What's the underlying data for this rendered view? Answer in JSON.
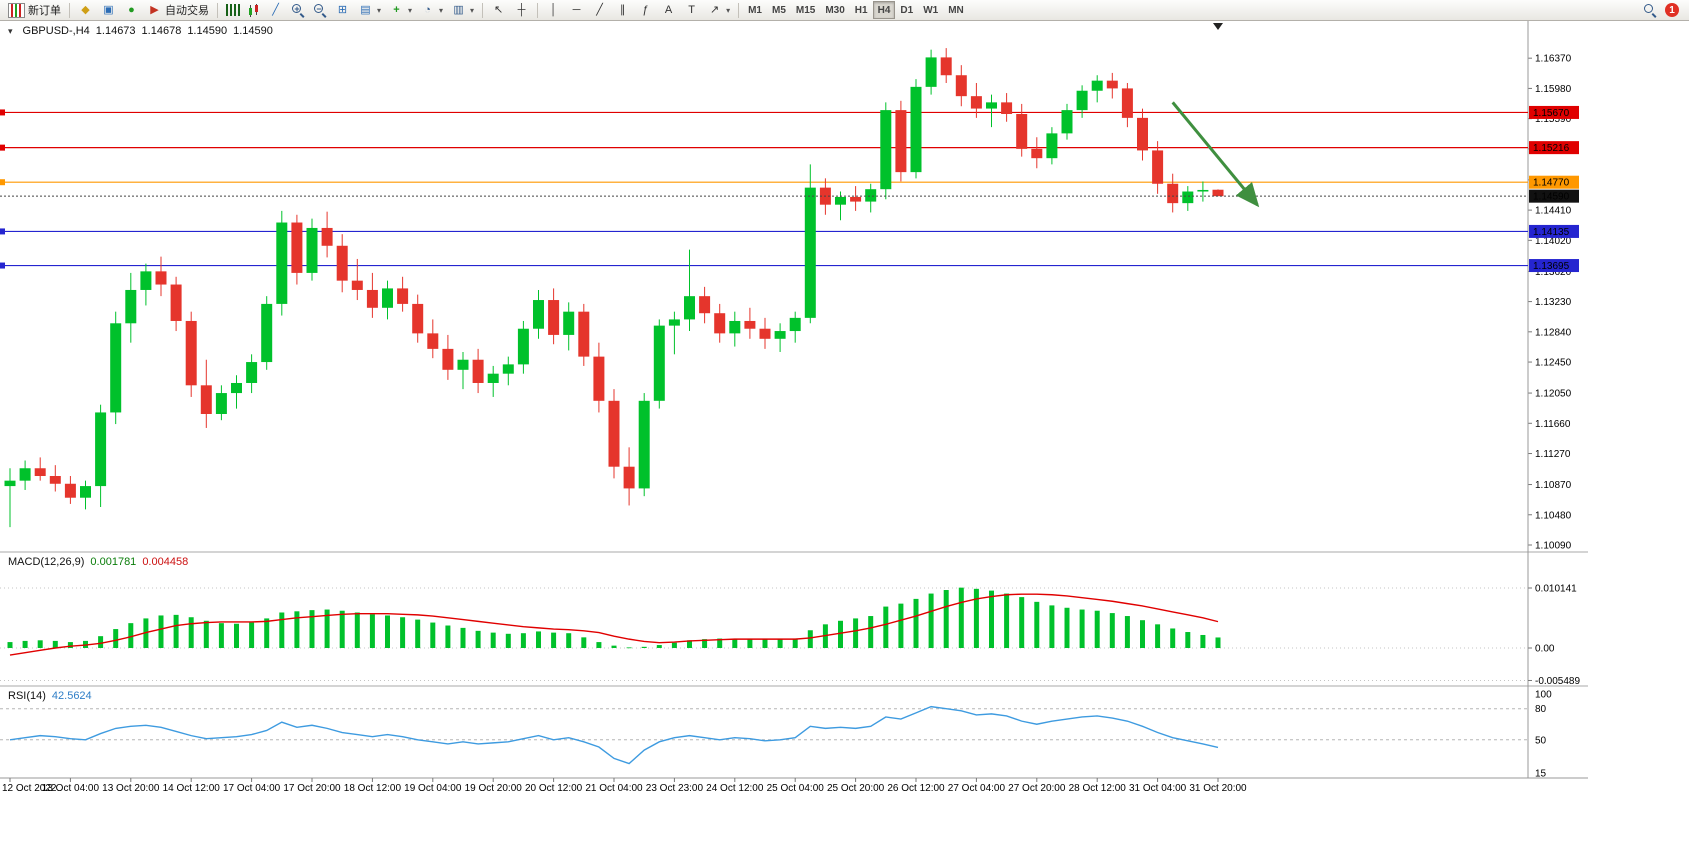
{
  "toolbar": {
    "new_order_label": "新订单",
    "autotrading_label": "自动交易",
    "timeframes": [
      "M1",
      "M5",
      "M15",
      "M30",
      "H1",
      "H4",
      "D1",
      "W1",
      "MN"
    ],
    "active_timeframe": "H4",
    "notification_count": "1"
  },
  "icons": {
    "caret": "▾",
    "market_watch": "◆",
    "data_window": "▣",
    "navigator": "●",
    "autotrading": "▶",
    "line_chart": "╱",
    "tile_windows": "⊞",
    "arrange": "▤",
    "indicators": "+",
    "periods": "◔",
    "templates": "▥",
    "cursor": "↖",
    "crosshair": "┼",
    "vline": "│",
    "hline": "─",
    "trendline": "╱",
    "channel": "∥",
    "fibonacci": "ƒ",
    "text_tool": "A",
    "label_tool": "T",
    "arrows_tool": "↗",
    "zoom_in_sign": "+",
    "zoom_out_sign": "−",
    "one_click": "▾"
  },
  "chart_header": {
    "symbol": "GBPUSD-,H4",
    "open": "1.14673",
    "high": "1.14678",
    "low": "1.14590",
    "close": "1.14590"
  },
  "indicators": {
    "macd": {
      "label": "MACD(12,26,9)",
      "value1": "0.001781",
      "value2": "0.004458",
      "scale": [
        "0.010141",
        "0.00",
        "-0.005489"
      ]
    },
    "rsi": {
      "label": "RSI(14)",
      "value": "42.5624",
      "scale": [
        "100",
        "80",
        "50",
        "15"
      ],
      "levels": [
        80,
        50
      ]
    }
  },
  "colors": {
    "up": "#00C12B",
    "down": "#E5352C",
    "macd_hist": "#00C12B",
    "macd_signal": "#E00000",
    "rsi_line": "#3E9BE0",
    "grid": "#b9b9b9",
    "red_line": "#E00000",
    "orange_line": "#FF9800",
    "blue_line": "#2525D0",
    "current_line": "#444444",
    "current_label_bg": "#111111",
    "arrow": "#3F8F3F"
  },
  "chart_data": {
    "type": "candlestick",
    "title": "GBPUSD-,H4",
    "timeframe": "H4",
    "ylim": [
      1.1009,
      1.1695
    ],
    "grid": "off",
    "x_label_every": 4,
    "x_labels": [
      "12 Oct 2022",
      "13 Oct 04:00",
      "13 Oct 20:00",
      "14 Oct 12:00",
      "17 Oct 04:00",
      "17 Oct 20:00",
      "18 Oct 12:00",
      "19 Oct 04:00",
      "19 Oct 20:00",
      "20 Oct 12:00",
      "21 Oct 04:00",
      "23 Oct 23:00",
      "24 Oct 12:00",
      "25 Oct 04:00",
      "25 Oct 20:00",
      "26 Oct 12:00",
      "27 Oct 04:00",
      "27 Oct 20:00",
      "28 Oct 12:00",
      "31 Oct 04:00",
      "31 Oct 20:00"
    ],
    "y_ticks": [
      "1.16370",
      "1.15980",
      "1.15590",
      "1.15200",
      "1.14800",
      "1.14410",
      "1.14020",
      "1.13620",
      "1.13230",
      "1.12840",
      "1.12450",
      "1.12050",
      "1.11660",
      "1.11270",
      "1.10870",
      "1.10480",
      "1.10090"
    ],
    "current_price": {
      "price": 1.1459,
      "label": "1.14590"
    },
    "hlines": [
      {
        "price": 1.1567,
        "label": "1.15670",
        "color": "#E00000"
      },
      {
        "price": 1.15216,
        "label": "1.15216",
        "color": "#E00000"
      },
      {
        "price": 1.1477,
        "label": "1.14770",
        "color": "#FF9800"
      },
      {
        "price": 1.14135,
        "label": "1.14135",
        "color": "#2525D0"
      },
      {
        "price": 1.13695,
        "label": "1.13695",
        "color": "#2525D0"
      }
    ],
    "arrow_annotation": {
      "from_bar": 77,
      "from_price": 1.158,
      "to_bar": 83,
      "to_price": 1.144
    },
    "candles": [
      [
        1.1085,
        1.1108,
        1.1032,
        1.1092
      ],
      [
        1.1092,
        1.1118,
        1.108,
        1.1108
      ],
      [
        1.1108,
        1.1122,
        1.1092,
        1.1098
      ],
      [
        1.1098,
        1.1112,
        1.1078,
        1.1088
      ],
      [
        1.1088,
        1.1098,
        1.1062,
        1.107
      ],
      [
        1.107,
        1.1092,
        1.1055,
        1.1085
      ],
      [
        1.1085,
        1.119,
        1.1058,
        1.118
      ],
      [
        1.118,
        1.131,
        1.1165,
        1.1295
      ],
      [
        1.1295,
        1.136,
        1.127,
        1.1338
      ],
      [
        1.1338,
        1.1372,
        1.1318,
        1.1362
      ],
      [
        1.1362,
        1.1381,
        1.133,
        1.1345
      ],
      [
        1.1345,
        1.1355,
        1.1285,
        1.1298
      ],
      [
        1.1298,
        1.131,
        1.12,
        1.1215
      ],
      [
        1.1215,
        1.1248,
        1.116,
        1.1178
      ],
      [
        1.1178,
        1.1215,
        1.117,
        1.1205
      ],
      [
        1.1205,
        1.1228,
        1.1185,
        1.1218
      ],
      [
        1.1218,
        1.1255,
        1.1205,
        1.1245
      ],
      [
        1.1245,
        1.133,
        1.1235,
        1.132
      ],
      [
        1.132,
        1.144,
        1.1305,
        1.1425
      ],
      [
        1.1425,
        1.1435,
        1.1345,
        1.136
      ],
      [
        1.136,
        1.143,
        1.135,
        1.1418
      ],
      [
        1.1418,
        1.1439,
        1.138,
        1.1395
      ],
      [
        1.1395,
        1.141,
        1.1335,
        1.135
      ],
      [
        1.135,
        1.1378,
        1.1325,
        1.1338
      ],
      [
        1.1338,
        1.136,
        1.1302,
        1.1315
      ],
      [
        1.1315,
        1.135,
        1.13,
        1.134
      ],
      [
        1.134,
        1.1355,
        1.131,
        1.132
      ],
      [
        1.132,
        1.1332,
        1.127,
        1.1282
      ],
      [
        1.1282,
        1.13,
        1.125,
        1.1262
      ],
      [
        1.1262,
        1.128,
        1.1222,
        1.1235
      ],
      [
        1.1235,
        1.1258,
        1.121,
        1.1248
      ],
      [
        1.1248,
        1.1262,
        1.1205,
        1.1218
      ],
      [
        1.1218,
        1.124,
        1.12,
        1.123
      ],
      [
        1.123,
        1.1252,
        1.1215,
        1.1242
      ],
      [
        1.1242,
        1.1298,
        1.123,
        1.1288
      ],
      [
        1.1288,
        1.1338,
        1.1275,
        1.1325
      ],
      [
        1.1325,
        1.134,
        1.1268,
        1.128
      ],
      [
        1.128,
        1.1322,
        1.126,
        1.131
      ],
      [
        1.131,
        1.132,
        1.124,
        1.1252
      ],
      [
        1.1252,
        1.127,
        1.118,
        1.1195
      ],
      [
        1.1195,
        1.121,
        1.1095,
        1.111
      ],
      [
        1.111,
        1.1135,
        1.106,
        1.1082
      ],
      [
        1.1082,
        1.1205,
        1.1072,
        1.1195
      ],
      [
        1.1195,
        1.13,
        1.1185,
        1.1292
      ],
      [
        1.1292,
        1.131,
        1.1255,
        1.13
      ],
      [
        1.13,
        1.139,
        1.1285,
        1.133
      ],
      [
        1.133,
        1.1342,
        1.1295,
        1.1308
      ],
      [
        1.1308,
        1.132,
        1.127,
        1.1282
      ],
      [
        1.1282,
        1.131,
        1.1265,
        1.1298
      ],
      [
        1.1298,
        1.1315,
        1.1275,
        1.1288
      ],
      [
        1.1288,
        1.1302,
        1.1262,
        1.1275
      ],
      [
        1.1275,
        1.1295,
        1.1258,
        1.1285
      ],
      [
        1.1285,
        1.131,
        1.127,
        1.1302
      ],
      [
        1.1302,
        1.15,
        1.1295,
        1.147
      ],
      [
        1.147,
        1.1482,
        1.1435,
        1.1448
      ],
      [
        1.1448,
        1.1465,
        1.1428,
        1.1458
      ],
      [
        1.1458,
        1.1472,
        1.144,
        1.1452
      ],
      [
        1.1452,
        1.1475,
        1.1438,
        1.1468
      ],
      [
        1.1468,
        1.158,
        1.1455,
        1.157
      ],
      [
        1.157,
        1.1582,
        1.1478,
        1.149
      ],
      [
        1.149,
        1.161,
        1.1482,
        1.16
      ],
      [
        1.16,
        1.1648,
        1.159,
        1.1638
      ],
      [
        1.1638,
        1.165,
        1.1605,
        1.1615
      ],
      [
        1.1615,
        1.1628,
        1.1575,
        1.1588
      ],
      [
        1.1588,
        1.1605,
        1.156,
        1.1572
      ],
      [
        1.1572,
        1.159,
        1.1548,
        1.158
      ],
      [
        1.158,
        1.1592,
        1.1555,
        1.1565
      ],
      [
        1.1565,
        1.1578,
        1.151,
        1.152
      ],
      [
        1.152,
        1.1535,
        1.1495,
        1.1508
      ],
      [
        1.1508,
        1.1548,
        1.15,
        1.154
      ],
      [
        1.154,
        1.1578,
        1.1532,
        1.157
      ],
      [
        1.157,
        1.1602,
        1.156,
        1.1595
      ],
      [
        1.1595,
        1.1615,
        1.158,
        1.1608
      ],
      [
        1.1608,
        1.1618,
        1.1585,
        1.1598
      ],
      [
        1.1598,
        1.1605,
        1.1548,
        1.156
      ],
      [
        1.156,
        1.1572,
        1.1505,
        1.1518
      ],
      [
        1.1518,
        1.153,
        1.1462,
        1.1475
      ],
      [
        1.1475,
        1.1488,
        1.1438,
        1.145
      ],
      [
        1.145,
        1.1472,
        1.144,
        1.1465
      ],
      [
        1.1465,
        1.1478,
        1.1452,
        1.1467
      ],
      [
        1.14673,
        1.14678,
        1.1459,
        1.1459
      ]
    ],
    "macd_histogram": [
      0.001,
      0.0012,
      0.0013,
      0.0012,
      0.001,
      0.0012,
      0.002,
      0.0032,
      0.0042,
      0.005,
      0.0055,
      0.0056,
      0.0052,
      0.0046,
      0.0042,
      0.0041,
      0.0043,
      0.005,
      0.006,
      0.0062,
      0.0064,
      0.0065,
      0.0063,
      0.006,
      0.0057,
      0.0055,
      0.0052,
      0.0048,
      0.0043,
      0.0038,
      0.0034,
      0.0029,
      0.0026,
      0.0024,
      0.0025,
      0.0028,
      0.0026,
      0.0025,
      0.0018,
      0.001,
      0.0004,
      0.0001,
      0.0002,
      0.0005,
      0.0009,
      0.0013,
      0.0015,
      0.0016,
      0.0016,
      0.0016,
      0.0015,
      0.0015,
      0.0016,
      0.003,
      0.004,
      0.0046,
      0.005,
      0.0054,
      0.007,
      0.0075,
      0.0083,
      0.0092,
      0.0098,
      0.0102,
      0.01,
      0.0097,
      0.0092,
      0.0086,
      0.0078,
      0.0072,
      0.0068,
      0.0065,
      0.0063,
      0.0059,
      0.0054,
      0.0047,
      0.004,
      0.0033,
      0.0027,
      0.0022,
      0.001781
    ],
    "macd_signal": [
      -0.0012,
      -0.0008,
      -0.0004,
      0.0,
      0.0003,
      0.0005,
      0.0008,
      0.0013,
      0.0019,
      0.0026,
      0.0032,
      0.0038,
      0.0041,
      0.0043,
      0.0044,
      0.0044,
      0.0044,
      0.0045,
      0.0048,
      0.0051,
      0.0053,
      0.0055,
      0.0057,
      0.0058,
      0.0058,
      0.0058,
      0.0057,
      0.0056,
      0.0054,
      0.0051,
      0.0048,
      0.0045,
      0.0042,
      0.0039,
      0.0036,
      0.0034,
      0.0032,
      0.0031,
      0.0029,
      0.0026,
      0.002,
      0.0015,
      0.0011,
      0.0009,
      0.001,
      0.0012,
      0.0013,
      0.0014,
      0.0015,
      0.0015,
      0.0015,
      0.0015,
      0.0015,
      0.0017,
      0.0021,
      0.0025,
      0.0029,
      0.0034,
      0.004,
      0.0047,
      0.0054,
      0.0062,
      0.007,
      0.0077,
      0.0083,
      0.0087,
      0.009,
      0.0091,
      0.0091,
      0.009,
      0.0088,
      0.0085,
      0.0082,
      0.0079,
      0.0075,
      0.0071,
      0.0066,
      0.0061,
      0.0056,
      0.0051,
      0.004458
    ],
    "rsi_values": [
      50,
      52,
      54,
      53,
      51,
      50,
      56,
      61,
      63,
      64,
      62,
      58,
      54,
      51,
      52,
      53,
      55,
      59,
      67,
      62,
      64,
      61,
      57,
      55,
      53,
      55,
      53,
      50,
      48,
      46,
      48,
      46,
      47,
      48,
      51,
      54,
      50,
      52,
      48,
      43,
      32,
      27,
      40,
      48,
      52,
      54,
      52,
      50,
      52,
      51,
      49,
      50,
      52,
      63,
      61,
      62,
      61,
      63,
      72,
      70,
      76,
      82,
      80,
      78,
      74,
      75,
      73,
      68,
      65,
      68,
      70,
      72,
      73,
      71,
      68,
      63,
      57,
      52,
      49,
      46,
      42.56
    ]
  }
}
